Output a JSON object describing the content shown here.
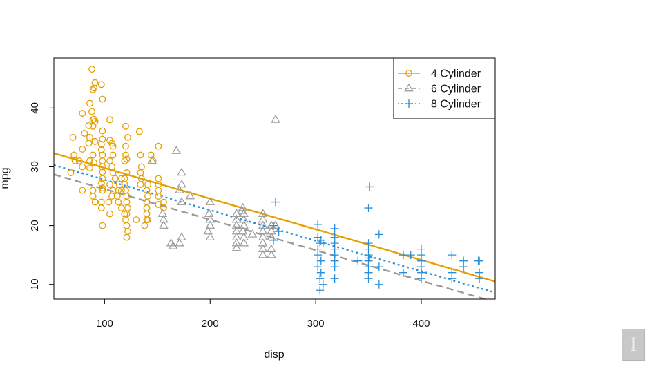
{
  "chart_data": {
    "type": "scatter",
    "title": "",
    "xlabel": "disp",
    "ylabel": "mpg",
    "xlim": [
      52,
      470
    ],
    "ylim": [
      7.5,
      48.5
    ],
    "xticks": [
      100,
      200,
      300,
      400
    ],
    "yticks": [
      10,
      20,
      30,
      40
    ],
    "grid": false,
    "legend_position": "top-right",
    "series": [
      {
        "name": "4 Cylinder",
        "marker": "circle",
        "line_style": "solid",
        "color": "#E69F00",
        "fit": {
          "x": [
            52,
            470
          ],
          "y": [
            32.3,
            10.5
          ]
        },
        "points": [
          [
            88,
            46.6
          ],
          [
            91,
            44.3
          ],
          [
            90,
            43.4
          ],
          [
            89,
            43.1
          ],
          [
            97,
            44.0
          ],
          [
            91,
            37.7
          ],
          [
            89,
            38.0
          ],
          [
            90,
            38.1
          ],
          [
            89,
            36.9
          ],
          [
            86,
            40.8
          ],
          [
            88,
            39.4
          ],
          [
            79,
            39.1
          ],
          [
            85,
            37.0
          ],
          [
            98,
            41.5
          ],
          [
            98,
            36.1
          ],
          [
            98,
            34.7
          ],
          [
            91,
            34.3
          ],
          [
            97,
            33.8
          ],
          [
            97,
            32.9
          ],
          [
            98,
            32.0
          ],
          [
            98,
            31.0
          ],
          [
            98,
            30.0
          ],
          [
            98,
            29.1
          ],
          [
            98,
            28.0
          ],
          [
            97,
            27.2
          ],
          [
            98,
            26.4
          ],
          [
            98,
            26.0
          ],
          [
            97,
            24.0
          ],
          [
            97,
            23.0
          ],
          [
            98,
            20.0
          ],
          [
            86,
            35.0
          ],
          [
            81,
            35.7
          ],
          [
            79,
            33.0
          ],
          [
            89,
            32.0
          ],
          [
            86,
            31.0
          ],
          [
            90,
            30.7
          ],
          [
            86,
            29.8
          ],
          [
            79,
            30.0
          ],
          [
            79,
            26.0
          ],
          [
            89,
            25.0
          ],
          [
            91,
            24.0
          ],
          [
            89,
            26.0
          ],
          [
            71,
            32.0
          ],
          [
            72,
            31.0
          ],
          [
            68,
            29.0
          ],
          [
            70,
            35.0
          ],
          [
            76,
            31.0
          ],
          [
            85,
            34.0
          ],
          [
            105,
            38.0
          ],
          [
            105,
            34.5
          ],
          [
            107,
            34.0
          ],
          [
            108,
            33.5
          ],
          [
            108,
            32.0
          ],
          [
            105,
            31.0
          ],
          [
            107,
            30.0
          ],
          [
            108,
            29.0
          ],
          [
            105,
            27.0
          ],
          [
            108,
            26.0
          ],
          [
            107,
            25.0
          ],
          [
            104,
            24.0
          ],
          [
            105,
            22.0
          ],
          [
            110,
            28.0
          ],
          [
            114,
            27.0
          ],
          [
            116,
            26.0
          ],
          [
            112,
            25.0
          ],
          [
            113,
            24.0
          ],
          [
            116,
            23.0
          ],
          [
            119,
            22.0
          ],
          [
            120,
            21.0
          ],
          [
            121,
            20.0
          ],
          [
            122,
            19.0
          ],
          [
            121,
            18.0
          ],
          [
            119,
            27.0
          ],
          [
            120,
            26.0
          ],
          [
            121,
            25.0
          ],
          [
            121,
            24.0
          ],
          [
            122,
            23.0
          ],
          [
            121,
            22.0
          ],
          [
            119,
            28.0
          ],
          [
            120,
            33.5
          ],
          [
            120,
            36.9
          ],
          [
            122,
            35.0
          ],
          [
            121,
            31.3
          ],
          [
            119,
            31.0
          ],
          [
            116,
            28.0
          ],
          [
            121,
            29.0
          ],
          [
            113,
            26.0
          ],
          [
            133,
            36.0
          ],
          [
            134,
            32.0
          ],
          [
            135,
            30.0
          ],
          [
            134,
            29.0
          ],
          [
            135,
            28.0
          ],
          [
            141,
            27.0
          ],
          [
            140,
            26.0
          ],
          [
            141,
            25.0
          ],
          [
            140,
            24.0
          ],
          [
            140,
            23.0
          ],
          [
            140,
            22.0
          ],
          [
            140,
            21.0
          ],
          [
            138,
            20.0
          ],
          [
            146,
            31.0
          ],
          [
            144,
            32.0
          ],
          [
            151,
            33.5
          ],
          [
            151,
            28.0
          ],
          [
            151,
            27.0
          ],
          [
            151,
            26.0
          ],
          [
            151,
            25.0
          ],
          [
            156,
            23.0
          ],
          [
            156,
            24.0
          ],
          [
            151,
            23.6
          ],
          [
            141,
            21.0
          ],
          [
            130,
            21.0
          ],
          [
            134,
            27.0
          ],
          [
            120,
            32.0
          ]
        ]
      },
      {
        "name": "6 Cylinder",
        "marker": "triangle",
        "line_style": "dashed",
        "color": "#999999",
        "fit": {
          "x": [
            52,
            470
          ],
          "y": [
            28.7,
            7.0
          ]
        },
        "points": [
          [
            262,
            38.0
          ],
          [
            168,
            32.7
          ],
          [
            145,
            31.0
          ],
          [
            173,
            29.0
          ],
          [
            173,
            27.0
          ],
          [
            171,
            26.0
          ],
          [
            173,
            24.0
          ],
          [
            181,
            25.0
          ],
          [
            155,
            22.0
          ],
          [
            156,
            21.0
          ],
          [
            156,
            20.0
          ],
          [
            163,
            17.0
          ],
          [
            173,
            18.0
          ],
          [
            165,
            16.5
          ],
          [
            171,
            17.0
          ],
          [
            200,
            24.0
          ],
          [
            199,
            22.0
          ],
          [
            200,
            21.0
          ],
          [
            200,
            20.0
          ],
          [
            198,
            19.0
          ],
          [
            200,
            18.0
          ],
          [
            225,
            22.0
          ],
          [
            225,
            21.0
          ],
          [
            225,
            20.0
          ],
          [
            225,
            19.0
          ],
          [
            225,
            18.0
          ],
          [
            225,
            17.0
          ],
          [
            231,
            23.0
          ],
          [
            232,
            22.0
          ],
          [
            232,
            21.0
          ],
          [
            232,
            20.0
          ],
          [
            231,
            19.0
          ],
          [
            232,
            18.0
          ],
          [
            232,
            17.0
          ],
          [
            250,
            22.0
          ],
          [
            250,
            21.0
          ],
          [
            250,
            20.0
          ],
          [
            250,
            19.0
          ],
          [
            250,
            18.0
          ],
          [
            250,
            17.0
          ],
          [
            250,
            16.0
          ],
          [
            250,
            15.0
          ],
          [
            258,
            20.0
          ],
          [
            258,
            19.0
          ],
          [
            258,
            18.0
          ],
          [
            258,
            16.0
          ],
          [
            258,
            15.0
          ],
          [
            262,
            20.0
          ],
          [
            230,
            22.5
          ],
          [
            240,
            18.5
          ],
          [
            225,
            16.2
          ]
        ]
      },
      {
        "name": "8 Cylinder",
        "marker": "plus",
        "line_style": "dotted",
        "color": "#2A8FD8",
        "fit": {
          "x": [
            52,
            470
          ],
          "y": [
            30.3,
            8.6
          ]
        },
        "points": [
          [
            351,
            26.6
          ],
          [
            350,
            23.0
          ],
          [
            360,
            18.5
          ],
          [
            262,
            24.0
          ],
          [
            260,
            20.0
          ],
          [
            265,
            19.0
          ],
          [
            260,
            17.5
          ],
          [
            302,
            20.2
          ],
          [
            302,
            18.0
          ],
          [
            304,
            17.0
          ],
          [
            305,
            17.5
          ],
          [
            302,
            16.0
          ],
          [
            302,
            15.0
          ],
          [
            305,
            14.0
          ],
          [
            302,
            13.0
          ],
          [
            305,
            12.0
          ],
          [
            304,
            11.0
          ],
          [
            307,
            10.0
          ],
          [
            304,
            9.0
          ],
          [
            318,
            19.5
          ],
          [
            318,
            18.0
          ],
          [
            318,
            17.0
          ],
          [
            318,
            16.0
          ],
          [
            318,
            15.0
          ],
          [
            318,
            14.0
          ],
          [
            318,
            13.0
          ],
          [
            318,
            11.0
          ],
          [
            350,
            17.0
          ],
          [
            350,
            16.0
          ],
          [
            350,
            15.0
          ],
          [
            350,
            14.0
          ],
          [
            350,
            13.0
          ],
          [
            350,
            12.0
          ],
          [
            350,
            11.0
          ],
          [
            351,
            14.5
          ],
          [
            360,
            13.0
          ],
          [
            360,
            10.0
          ],
          [
            383,
            15.0
          ],
          [
            383,
            12.0
          ],
          [
            390,
            15.0
          ],
          [
            400,
            16.0
          ],
          [
            400,
            15.0
          ],
          [
            400,
            14.0
          ],
          [
            400,
            13.0
          ],
          [
            400,
            12.0
          ],
          [
            400,
            11.0
          ],
          [
            429,
            15.0
          ],
          [
            429,
            12.0
          ],
          [
            429,
            11.0
          ],
          [
            440,
            14.0
          ],
          [
            440,
            13.0
          ],
          [
            455,
            14.0
          ],
          [
            455,
            12.0
          ],
          [
            455,
            11.0
          ],
          [
            454,
            14.0
          ],
          [
            340,
            14.0
          ],
          [
            307,
            17.0
          ]
        ]
      }
    ]
  }
}
